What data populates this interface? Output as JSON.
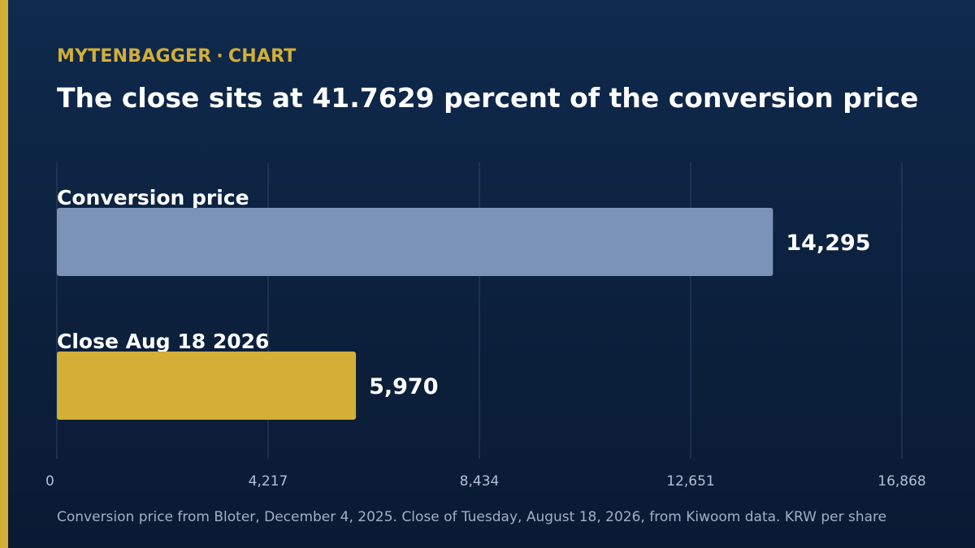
{
  "header": {
    "brand": "MYTENBAGGER",
    "separator": "·",
    "section": "CHART",
    "title": "The close sits at 41.7629 percent of the conversion price"
  },
  "colors": {
    "accent": "#d4af37",
    "bar_conversion": "#7a93b6",
    "bar_close": "#d4af37",
    "grid": "#2c4468"
  },
  "chart_data": {
    "type": "bar",
    "orientation": "horizontal",
    "categories": [
      "Conversion price",
      "Close Aug 18 2026"
    ],
    "values": [
      14295,
      5970
    ],
    "value_labels": [
      "14,295",
      "5,970"
    ],
    "xlim": [
      0,
      16868
    ],
    "xticks": [
      0,
      4217,
      8434,
      12651,
      16868
    ],
    "xtick_labels": [
      "0",
      "4,217",
      "8,434",
      "12,651",
      "16,868"
    ],
    "grid": true,
    "legend": "none"
  },
  "footer": {
    "source": "Conversion price from Bloter, December 4, 2025. Close of Tuesday, August 18, 2026, from Kiwoom data. KRW per share"
  }
}
